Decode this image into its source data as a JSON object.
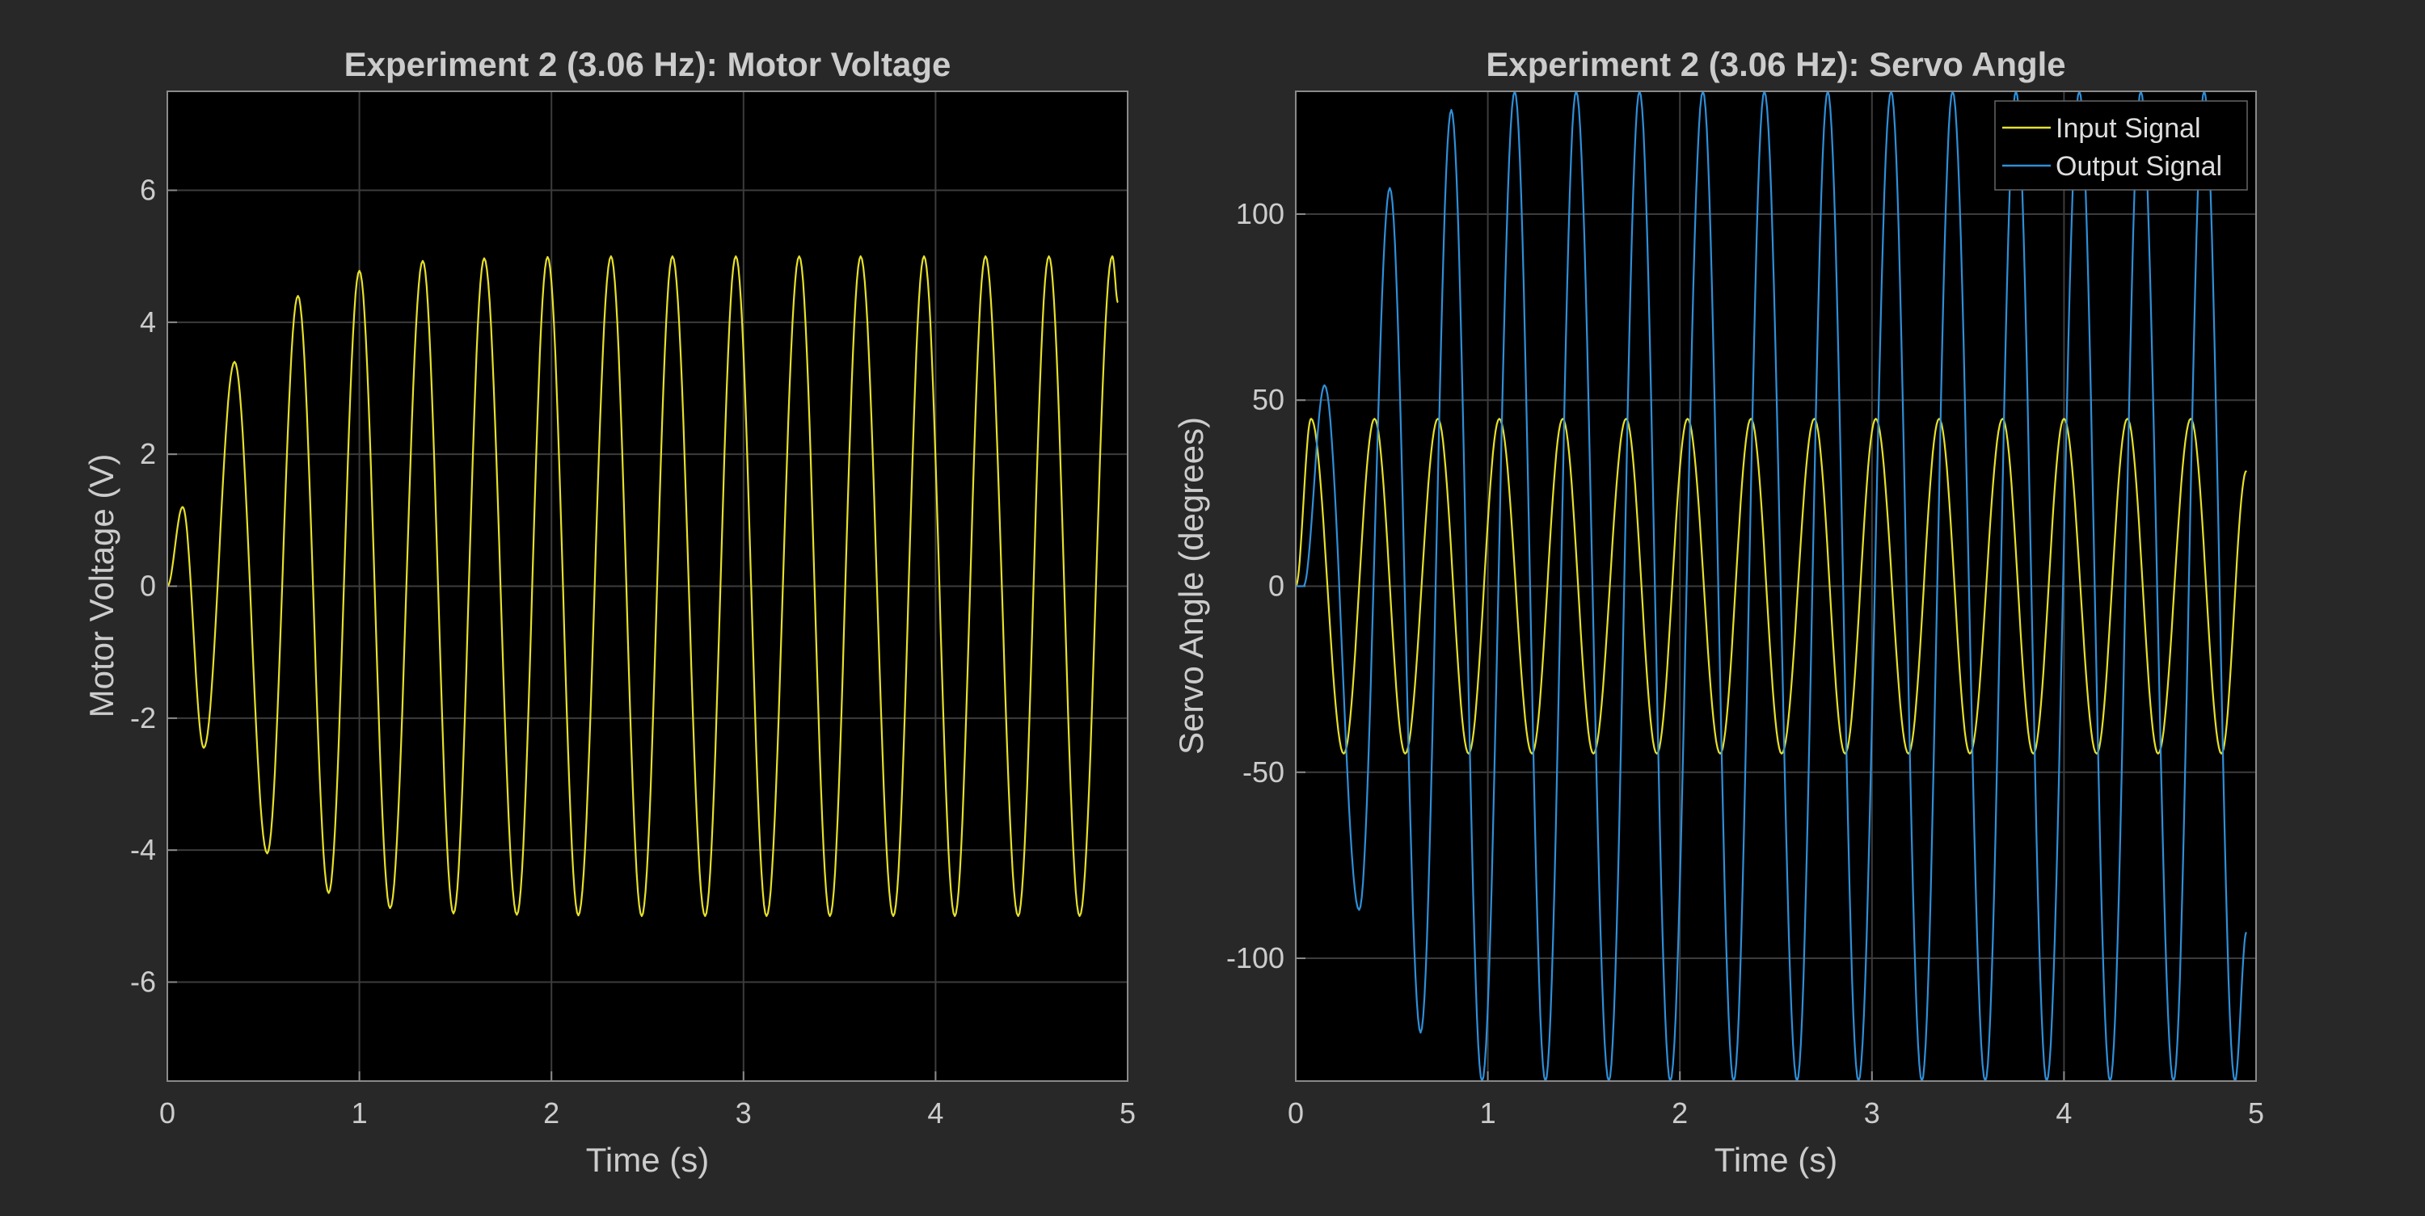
{
  "chart_data": [
    {
      "type": "line",
      "title": "Experiment 2 (3.06 Hz): Motor Voltage",
      "xlabel": "Time (s)",
      "ylabel": "Motor Voltage (V)",
      "xlim": [
        0,
        5
      ],
      "ylim": [
        -7.5,
        7.5
      ],
      "xticks": [
        0,
        1,
        2,
        3,
        4,
        5
      ],
      "xtick_labels": [
        "0",
        "1",
        "2",
        "3",
        "4",
        "5"
      ],
      "yticks": [
        -6,
        -4,
        -2,
        0,
        2,
        4,
        6
      ],
      "ytick_labels": [
        "-6",
        "-4",
        "-2",
        "0",
        "2",
        "4",
        "6"
      ],
      "grid": true,
      "series": [
        {
          "color": "#e6e02a",
          "frequency_hz": 3.06,
          "steady_amplitude": 5.0,
          "x": [
            0,
            0.08,
            0.19,
            0.35,
            0.52,
            0.68,
            0.84,
            1.0,
            1.16,
            1.33,
            1.49,
            1.65,
            1.82,
            1.98,
            2.14,
            2.31,
            2.47,
            2.63,
            2.8,
            2.96,
            3.12,
            3.29,
            3.45,
            3.61,
            3.78,
            3.94,
            4.1,
            4.26,
            4.43,
            4.59,
            4.75,
            4.92,
            4.95
          ],
          "y": [
            0,
            1.2,
            -2.45,
            3.4,
            -4.05,
            4.4,
            -4.65,
            4.78,
            -4.88,
            4.93,
            -4.96,
            4.97,
            -4.98,
            4.99,
            -4.99,
            5.0,
            -5.0,
            5.0,
            -5.0,
            5.0,
            -5.0,
            5.0,
            -5.0,
            5.0,
            -5.0,
            5.0,
            -5.0,
            5.0,
            -5.0,
            5.0,
            -5.0,
            5.0,
            4.3
          ]
        }
      ]
    },
    {
      "type": "line",
      "title": "Experiment 2 (3.06 Hz): Servo Angle",
      "xlabel": "Time (s)",
      "ylabel": "Servo Angle (degrees)",
      "xlim": [
        0,
        5
      ],
      "ylim": [
        -133,
        133
      ],
      "xticks": [
        0,
        1,
        2,
        3,
        4,
        5
      ],
      "xtick_labels": [
        "0",
        "1",
        "2",
        "3",
        "4",
        "5"
      ],
      "yticks": [
        -100,
        -50,
        0,
        50,
        100
      ],
      "ytick_labels": [
        "-100",
        "-50",
        "0",
        "50",
        "100"
      ],
      "grid": true,
      "legend": "top-right",
      "series": [
        {
          "name": "Input Signal",
          "color": "#e6e02a",
          "frequency_hz": 3.06,
          "amplitude": 45,
          "x": [
            0,
            0.08,
            0.25,
            0.41,
            0.57,
            0.74,
            0.9,
            1.06,
            1.23,
            1.39,
            1.55,
            1.72,
            1.88,
            2.04,
            2.21,
            2.37,
            2.53,
            2.7,
            2.86,
            3.02,
            3.19,
            3.35,
            3.51,
            3.68,
            3.84,
            4.0,
            4.17,
            4.33,
            4.49,
            4.66,
            4.82,
            4.95
          ],
          "y": [
            0,
            45,
            -45,
            45,
            -45,
            45,
            -45,
            45,
            -45,
            45,
            -45,
            45,
            -45,
            45,
            -45,
            45,
            -45,
            45,
            -45,
            45,
            -45,
            45,
            -45,
            45,
            -45,
            45,
            -45,
            45,
            -45,
            45,
            -45,
            31
          ]
        },
        {
          "name": "Output Signal",
          "color": "#2f8fd8",
          "frequency_hz": 3.06,
          "x": [
            0,
            0.04,
            0.15,
            0.33,
            0.49,
            0.65,
            0.81,
            0.97,
            1.14,
            1.3,
            1.46,
            1.63,
            1.79,
            1.95,
            2.12,
            2.28,
            2.44,
            2.61,
            2.77,
            2.93,
            3.1,
            3.26,
            3.42,
            3.59,
            3.75,
            3.91,
            4.08,
            4.24,
            4.4,
            4.57,
            4.73,
            4.89,
            4.95
          ],
          "y": [
            0,
            0,
            54,
            -87,
            107,
            -120,
            128,
            -133,
            133,
            -133,
            133,
            -133,
            133,
            -133,
            133,
            -133,
            133,
            -133,
            133,
            -133,
            133,
            -133,
            133,
            -133,
            133,
            -133,
            133,
            -133,
            133,
            -133,
            133,
            -133,
            -93
          ]
        }
      ]
    }
  ]
}
